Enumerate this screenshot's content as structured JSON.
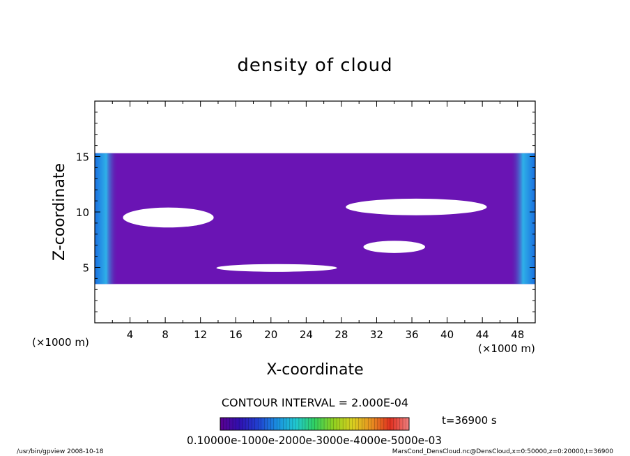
{
  "chart_data": {
    "type": "heatmap",
    "title": "density of cloud",
    "xlabel": "X-coordinate",
    "ylabel": "Z-coordinate",
    "x_unit": "(×1000 m)",
    "y_unit": "(×1000 m)",
    "xlim": [
      0,
      50
    ],
    "ylim": [
      0,
      20
    ],
    "x_ticks": [
      4,
      8,
      12,
      16,
      20,
      24,
      28,
      32,
      36,
      40,
      44,
      48
    ],
    "y_ticks": [
      5,
      10,
      15
    ],
    "cloud_layer_z": [
      3.5,
      15.3
    ],
    "clear_regions": [
      {
        "x": [
          3.2,
          13.5
        ],
        "z": [
          8.6,
          10.4
        ]
      },
      {
        "x": [
          28.5,
          44.5
        ],
        "z": [
          9.7,
          11.2
        ]
      },
      {
        "x": [
          13.8,
          27.5
        ],
        "z": [
          4.6,
          5.3
        ]
      },
      {
        "x": [
          30.5,
          37.5
        ],
        "z": [
          6.3,
          7.4
        ]
      }
    ],
    "contour_interval": "CONTOUR INTERVAL = 2.000E-04",
    "time_label": "t=36900 s",
    "colorbar": {
      "min": 0.0001,
      "max": 0.0006,
      "tick_text": "0.10000e-1000e-2000e-3000e-4000e-5000e-03",
      "colors": [
        "#5a0090",
        "#3010b0",
        "#2040d0",
        "#1a8fe0",
        "#20c8d0",
        "#30d060",
        "#90d020",
        "#d8d020",
        "#e89020",
        "#e03020",
        "#f08080"
      ]
    }
  },
  "footer": {
    "left": "/usr/bin/gpview   2008-10-18",
    "right": "MarsCond_DensCloud.nc@DensCloud,x=0:50000,z=0:20000,t=36900"
  }
}
